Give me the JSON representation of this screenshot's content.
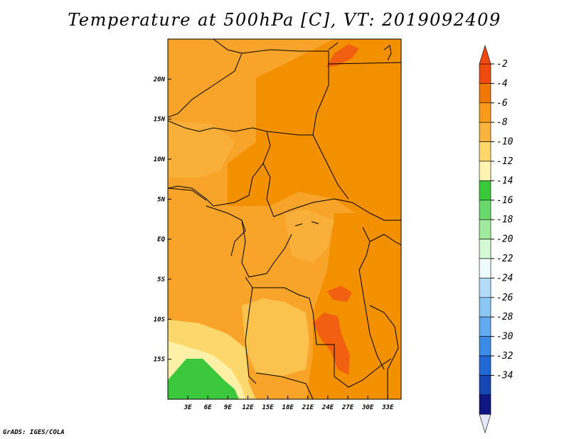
{
  "title": "Temperature at 500hPa [C], VT: 2019092409",
  "credit": "GrADS: IGES/COLA",
  "axes": {
    "lon_labels": [
      "3E",
      "6E",
      "9E",
      "12E",
      "15E",
      "18E",
      "21E",
      "24E",
      "27E",
      "30E",
      "33E"
    ],
    "lon_values": [
      3,
      6,
      9,
      12,
      15,
      18,
      21,
      24,
      27,
      30,
      33
    ],
    "lat_labels": [
      "20N",
      "15N",
      "10N",
      "5N",
      "EQ",
      "5S",
      "10S",
      "15S"
    ],
    "lat_values": [
      20,
      15,
      10,
      5,
      0,
      -5,
      -10,
      -15
    ],
    "lon_range": [
      0,
      35
    ],
    "lat_range": [
      -20,
      25
    ]
  },
  "colorbar": {
    "labels": [
      "-2",
      "-4",
      "-6",
      "-8",
      "-10",
      "-12",
      "-14",
      "-16",
      "-18",
      "-20",
      "-22",
      "-24",
      "-26",
      "-28",
      "-30",
      "-32",
      "-34"
    ],
    "colors": [
      "#f04a10",
      "#f07800",
      "#f89c1a",
      "#f8b43c",
      "#fcd86c",
      "#fff4b4",
      "#3cc83c",
      "#6ad86a",
      "#a0eaa0",
      "#d4fad4",
      "#eefcff",
      "#b4dcf8",
      "#8cc6f4",
      "#64aaf0",
      "#3c8ce6",
      "#2068d6",
      "#1446b4",
      "#101884"
    ],
    "top_triangle_color": "#f04a10",
    "bottom_triangle_color": "#e6e6fa"
  },
  "colors": {
    "warmest": "#f04a10",
    "warm": "#f07800",
    "mid": "#f8a42a",
    "cool": "#fcd86c",
    "cooler": "#fff4b4",
    "green": "#3cc83c"
  }
}
